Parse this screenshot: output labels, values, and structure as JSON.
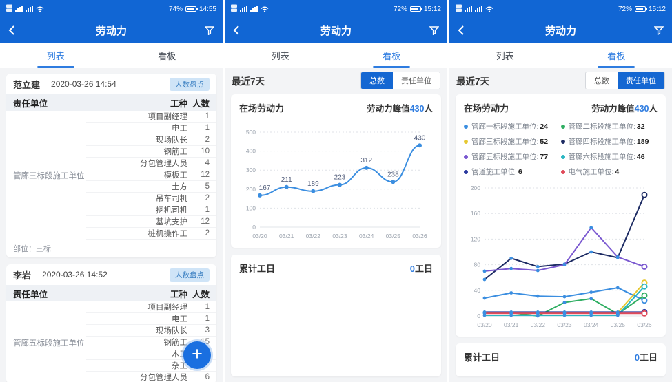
{
  "colors": {
    "accent": "#1166d4",
    "link": "#2e7ce0",
    "badge_bg": "#cfe4f7",
    "badge_text": "#3a7fc2"
  },
  "screens": [
    {
      "status": {
        "battery": "74%",
        "time": "14:55"
      },
      "nav": {
        "title": "劳动力"
      },
      "tabs": [
        {
          "label": "列表",
          "active": true
        },
        {
          "label": "看板",
          "active": false
        }
      ],
      "cards": [
        {
          "name": "范立建",
          "datetime": "2020-03-26 14:54",
          "badge": "人数盘点",
          "columns": {
            "unit": "责任单位",
            "work": "工种",
            "count": "人数"
          },
          "unit": "管廊三标段施工单位",
          "rows": [
            [
              "项目副经理",
              "1"
            ],
            [
              "电工",
              "1"
            ],
            [
              "现场队长",
              "2"
            ],
            [
              "钢筋工",
              "10"
            ],
            [
              "分包管理人员",
              "4"
            ],
            [
              "模板工",
              "12"
            ],
            [
              "土方",
              "5"
            ],
            [
              "吊车司机",
              "2"
            ],
            [
              "挖机司机",
              "1"
            ],
            [
              "基坑支护",
              "12"
            ],
            [
              "桩机操作工",
              "2"
            ]
          ],
          "footer": "部位：三标"
        },
        {
          "name": "李岩",
          "datetime": "2020-03-26 14:52",
          "badge": "人数盘点",
          "columns": {
            "unit": "责任单位",
            "work": "工种",
            "count": "人数"
          },
          "unit": "管廊五标段施工单位",
          "rows": [
            [
              "项目副经理",
              "1"
            ],
            [
              "电工",
              "1"
            ],
            [
              "现场队长",
              "3"
            ],
            [
              "钢筋工",
              "15"
            ],
            [
              "木工",
              "10"
            ],
            [
              "杂工",
              ""
            ],
            [
              "分包管理人员",
              "6"
            ]
          ]
        }
      ],
      "fab": "+"
    },
    {
      "status": {
        "battery": "72%",
        "time": "15:12"
      },
      "nav": {
        "title": "劳动力"
      },
      "tabs": [
        {
          "label": "列表",
          "active": false
        },
        {
          "label": "看板",
          "active": true
        }
      ],
      "range_label": "最近7天",
      "toggle": [
        {
          "label": "总数",
          "active": true
        },
        {
          "label": "责任单位",
          "active": false
        }
      ],
      "summary": {
        "label": "累计工日",
        "value": "0",
        "unit": "工日"
      }
    },
    {
      "status": {
        "battery": "72%",
        "time": "15:12"
      },
      "nav": {
        "title": "劳动力"
      },
      "tabs": [
        {
          "label": "列表",
          "active": false
        },
        {
          "label": "看板",
          "active": true
        }
      ],
      "range_label": "最近7天",
      "toggle": [
        {
          "label": "总数",
          "active": false
        },
        {
          "label": "责任单位",
          "active": true
        }
      ],
      "summary": {
        "label": "累计工日",
        "value": "0",
        "unit": "工日"
      }
    }
  ],
  "chart_data": [
    {
      "type": "line",
      "title": "在场劳动力",
      "peak_label": "劳动力峰值",
      "peak_value": "430",
      "peak_unit": "人",
      "x": [
        "03/20",
        "03/21",
        "03/22",
        "03/23",
        "03/24",
        "03/25",
        "03/26"
      ],
      "ylim": [
        0,
        500
      ],
      "yticks": [
        0,
        100,
        200,
        300,
        400,
        500
      ],
      "grid": "dotted",
      "smooth": true,
      "point_labels": true,
      "open_end": false,
      "legend_position": "none",
      "series": [
        {
          "name": "总数",
          "color": "#3b8ee0",
          "values": [
            167,
            211,
            189,
            223,
            312,
            238,
            430
          ]
        }
      ]
    },
    {
      "type": "line",
      "title": "在场劳动力",
      "peak_label": "劳动力峰值",
      "peak_value": "430",
      "peak_unit": "人",
      "x": [
        "03/20",
        "03/21",
        "03/22",
        "03/23",
        "03/24",
        "03/25",
        "03/26"
      ],
      "ylim": [
        0,
        200
      ],
      "yticks": [
        0,
        40,
        80,
        120,
        160,
        200
      ],
      "grid": "dotted",
      "smooth": false,
      "point_labels": false,
      "open_end": true,
      "legend_position": "top",
      "series": [
        {
          "name": "管廊一标段施工单位",
          "latest": "24",
          "color": "#3b8ee0",
          "values": [
            28,
            36,
            31,
            30,
            37,
            44,
            24
          ]
        },
        {
          "name": "管廊二标段施工单位",
          "latest": "32",
          "color": "#2fae62",
          "values": [
            5,
            5,
            0,
            21,
            27,
            3,
            32
          ]
        },
        {
          "name": "管廊三标段施工单位",
          "latest": "52",
          "color": "#e6c832",
          "values": [
            5,
            5,
            5,
            5,
            5,
            5,
            52
          ]
        },
        {
          "name": "管廊四标段施工单位",
          "latest": "189",
          "color": "#1d2b63",
          "values": [
            57,
            90,
            77,
            81,
            100,
            91,
            189
          ]
        },
        {
          "name": "管廊五标段施工单位",
          "latest": "77",
          "color": "#7a58d0",
          "values": [
            70,
            74,
            71,
            80,
            138,
            92,
            77
          ]
        },
        {
          "name": "管廊六标段施工单位",
          "latest": "46",
          "color": "#2ab6c2",
          "values": [
            1,
            1,
            1,
            1,
            1,
            1,
            46
          ]
        },
        {
          "name": "管道施工单位",
          "latest": "6",
          "color": "#2b3a9f",
          "values": [
            6,
            6,
            6,
            6,
            6,
            6,
            6
          ]
        },
        {
          "name": "电气施工单位",
          "latest": "4",
          "color": "#e04a5a",
          "values": [
            4,
            4,
            4,
            4,
            4,
            4,
            4
          ]
        }
      ]
    }
  ]
}
